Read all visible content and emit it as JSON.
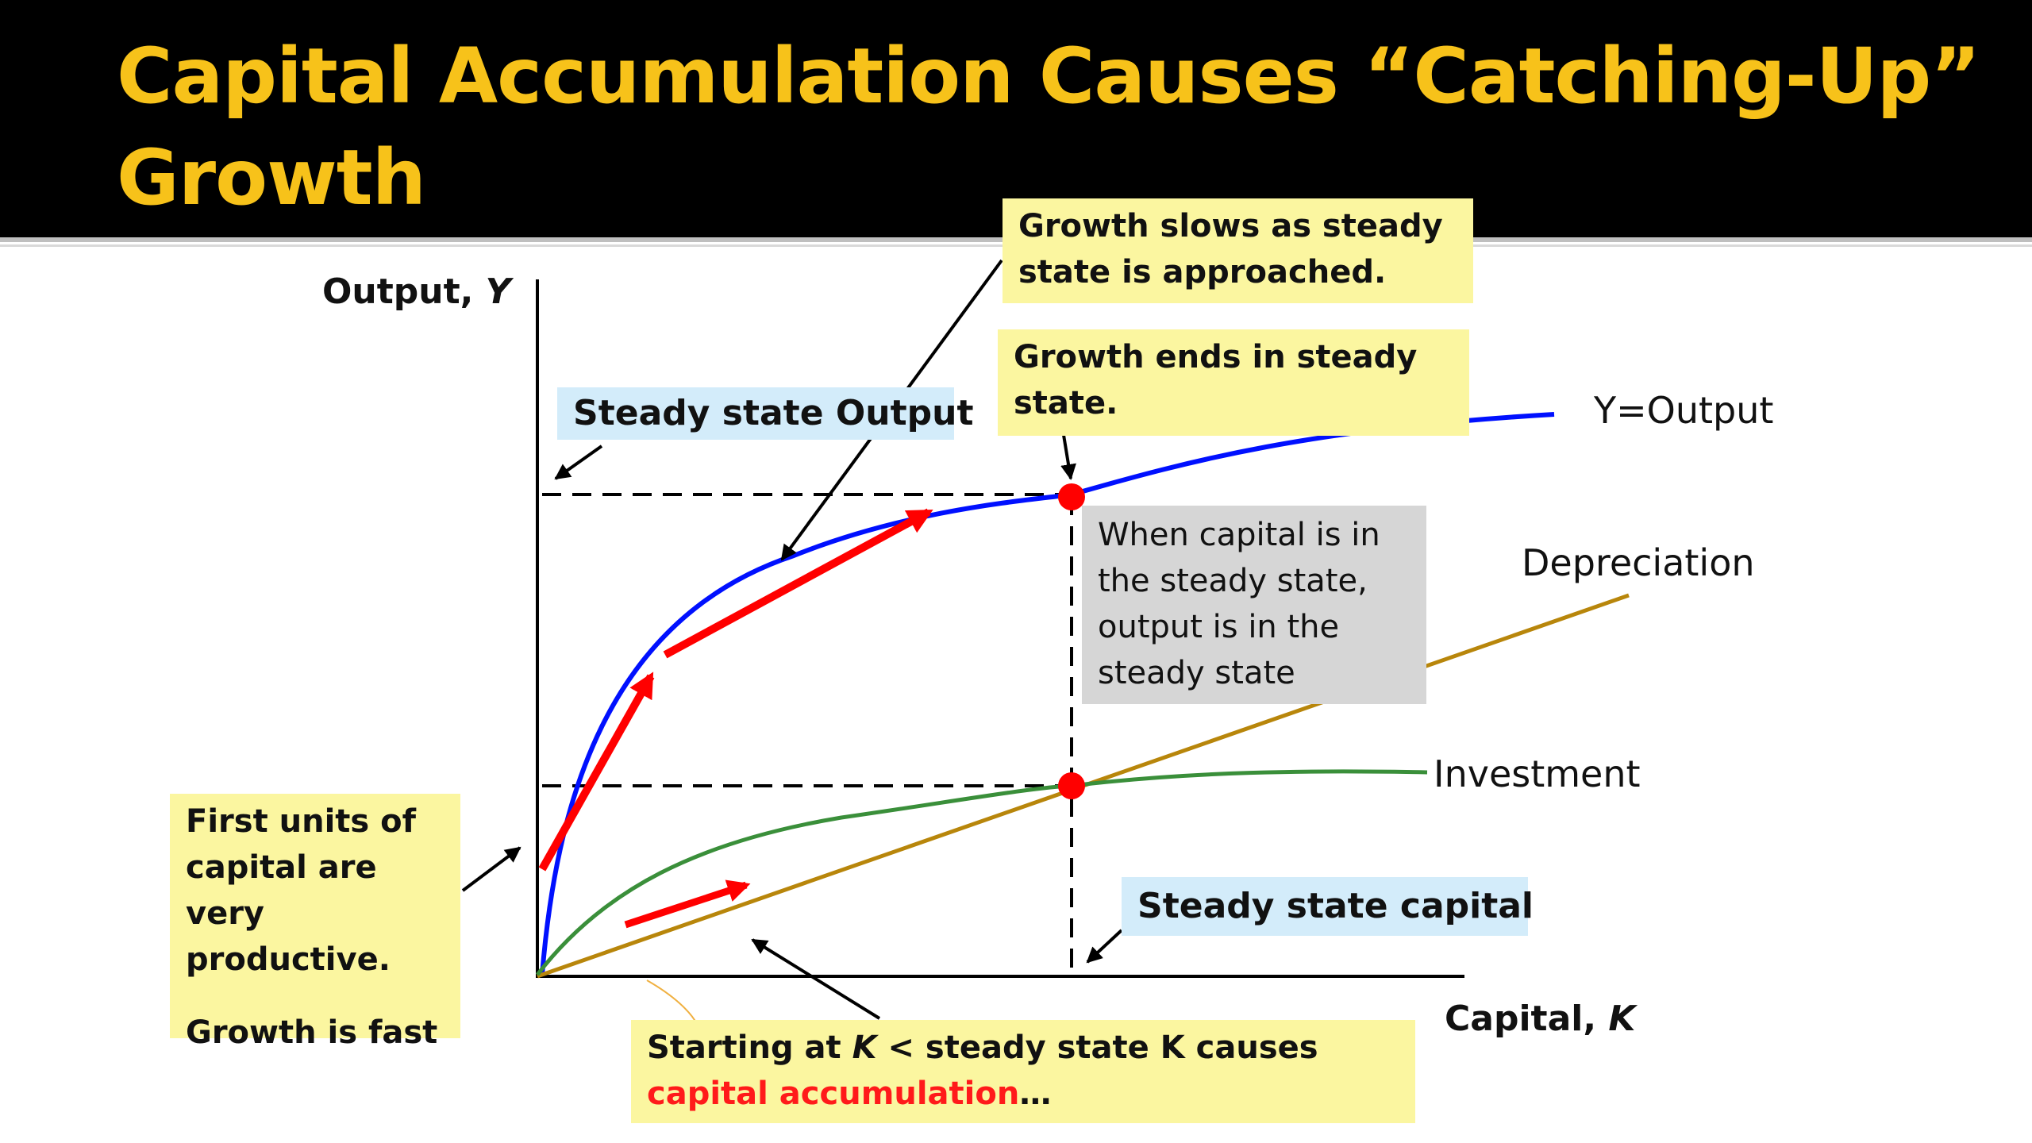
{
  "slide": {
    "title_line1": "Capital Accumulation Causes “Catching-Up”",
    "title_line2": "Growth"
  },
  "axes": {
    "y_label_plain": "Output, ",
    "y_label_italic": "Y",
    "x_label_plain": "Capital, ",
    "x_label_italic": "K"
  },
  "curves": {
    "output_label": "Y=Output",
    "depreciation_label": "Depreciation",
    "investment_label": "Investment"
  },
  "callouts": {
    "growth_slows": "Growth slows as steady state is approached.",
    "growth_ends": "Growth ends in steady state.",
    "steady_output": "Steady state Output",
    "when_capital": "When capital is in the steady state, output is in the steady state",
    "steady_capital": "Steady state capital",
    "first_units": "First units of capital are very productive.",
    "growth_fast": "Growth is fast",
    "starting_pre": "Starting at ",
    "starting_k": "K",
    "starting_mid": " < steady state K causes ",
    "starting_red": "capital accumulation",
    "starting_post": "…"
  },
  "colors": {
    "title": "#f7c21a",
    "output_curve": "#0010ff",
    "depreciation_line": "#b8860b",
    "investment_curve": "#3a8f3a",
    "arrows": "#ff0000",
    "callout_yellow": "#fbf6a0",
    "callout_blue": "#d3ecfa",
    "callout_gray": "#d6d6d6"
  }
}
